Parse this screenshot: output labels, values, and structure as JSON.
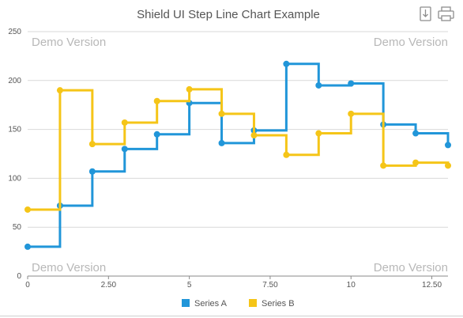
{
  "chart_data": {
    "type": "line",
    "step": true,
    "title": "Shield UI Step Line Chart Example",
    "xlabel": "",
    "ylabel": "",
    "xlim": [
      0,
      13
    ],
    "ylim": [
      0,
      250
    ],
    "x_ticks": [
      0,
      2.5,
      5,
      7.5,
      10,
      12.5
    ],
    "x_tick_labels": [
      "0",
      "2.50",
      "5",
      "7.50",
      "10",
      "12.50"
    ],
    "y_ticks": [
      0,
      50,
      100,
      150,
      200,
      250
    ],
    "y_tick_labels": [
      "0",
      "50",
      "100",
      "150",
      "200",
      "250"
    ],
    "grid": true,
    "legend": "bottom-center",
    "series": [
      {
        "name": "Series A",
        "color": "#2196d9",
        "x": [
          0,
          1,
          2,
          3,
          4,
          5,
          6,
          7,
          8,
          9,
          10,
          11,
          12,
          13
        ],
        "values": [
          30,
          72,
          107,
          130,
          145,
          177,
          136,
          149,
          217,
          195,
          197,
          155,
          146,
          134
        ]
      },
      {
        "name": "Series B",
        "color": "#f5c518",
        "x": [
          0,
          1,
          2,
          3,
          4,
          5,
          6,
          7,
          8,
          9,
          10,
          11,
          12,
          13
        ],
        "values": [
          68,
          190,
          135,
          157,
          179,
          191,
          166,
          144,
          124,
          146,
          166,
          113,
          116,
          113
        ]
      }
    ],
    "watermarks": [
      "Demo Version",
      "Demo Version",
      "Demo Version",
      "Demo Version"
    ]
  },
  "toolbar": {
    "export_icon": "download-icon",
    "print_icon": "printer-icon"
  }
}
